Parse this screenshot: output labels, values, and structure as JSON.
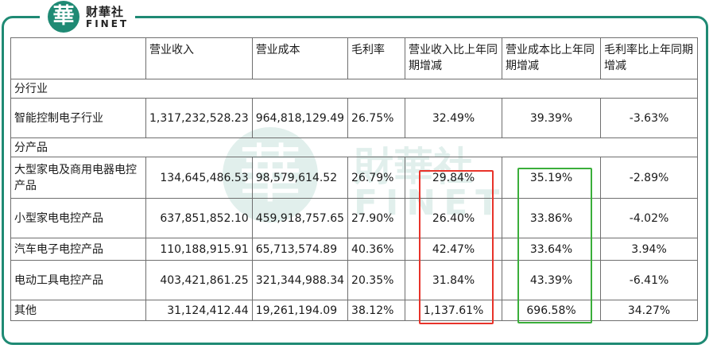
{
  "logo": {
    "cn": "财華社",
    "en": "FINET",
    "mark": "華"
  },
  "watermark": {
    "cn": "財華社",
    "en": "FINET",
    "mark": "華"
  },
  "colors": {
    "brand": "#1f8a74",
    "highlight_red": "#e8332a",
    "highlight_green": "#3aae3a"
  },
  "table": {
    "headers": [
      "",
      "营业收入",
      "营业成本",
      "毛利率",
      "营业收入比上年同期增减",
      "营业成本比上年同期增减",
      "毛利率比上年同期增减"
    ],
    "section_industry": "分行业",
    "industry_rows": [
      {
        "name": "智能控制电子行业",
        "revenue": "1,317,232,528.23",
        "cost": "964,818,129.49",
        "margin": "26.75%",
        "rev_chg": "32.49%",
        "cost_chg": "39.39%",
        "margin_chg": "-3.63%"
      }
    ],
    "section_product": "分产品",
    "product_rows": [
      {
        "name": "大型家电及商用电器电控产品",
        "revenue": "134,645,486.53",
        "cost": "98,579,614.52",
        "margin": "26.79%",
        "rev_chg": "29.84%",
        "cost_chg": "35.19%",
        "margin_chg": "-2.89%"
      },
      {
        "name": "小型家电电控产品",
        "revenue": "637,851,852.10",
        "cost": "459,918,757.65",
        "margin": "27.90%",
        "rev_chg": "26.40%",
        "cost_chg": "33.86%",
        "margin_chg": "-4.02%"
      },
      {
        "name": "汽车电子电控产品",
        "revenue": "110,188,915.91",
        "cost": "65,713,574.89",
        "margin": "40.36%",
        "rev_chg": "42.47%",
        "cost_chg": "33.64%",
        "margin_chg": "3.94%"
      },
      {
        "name": "电动工具电控产品",
        "revenue": "403,421,861.25",
        "cost": "321,344,988.34",
        "margin": "20.35%",
        "rev_chg": "31.84%",
        "cost_chg": "43.39%",
        "margin_chg": "-6.41%"
      },
      {
        "name": "其他",
        "revenue": "31,124,412.44",
        "cost": "19,261,194.09",
        "margin": "38.12%",
        "rev_chg": "1,137.61%",
        "cost_chg": "696.58%",
        "margin_chg": "34.27%"
      }
    ]
  }
}
